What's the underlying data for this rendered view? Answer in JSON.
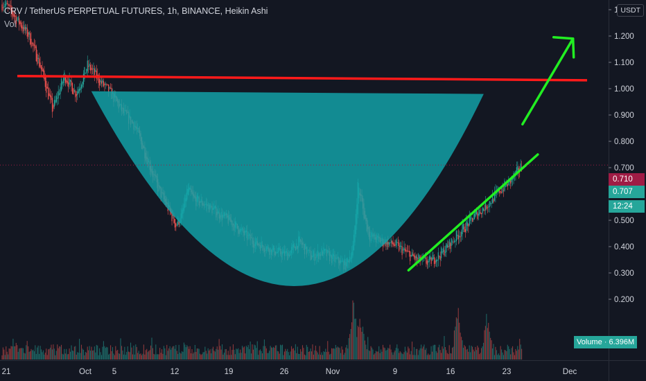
{
  "header": {
    "title": "CRV / TetherUS PERPETUAL FUTURES, 1h, BINANCE, Heikin Ashi",
    "indicator": "Vol",
    "currency_button": "USDT"
  },
  "price_labels": {
    "last_price": "0.710",
    "current_price": "0.707",
    "countdown": "12:24",
    "volume_label": "Volume",
    "volume_separator": "·",
    "volume_value": "6.396M"
  },
  "colors": {
    "background": "#131722",
    "up": "#26a69a",
    "down": "#ef5350",
    "cup_fill": "#12a5ab",
    "resistance": "#ff1a1a",
    "arrow": "#22ee22",
    "last_price_tag": "#a01c45"
  },
  "chart_data": {
    "type": "candlestick",
    "title": "CRV / TetherUS PERPETUAL FUTURES, 1h, BINANCE, Heikin Ashi",
    "y_axis": {
      "ticks": [
        "1.300",
        "1.200",
        "1.100",
        "1.000",
        "0.900",
        "0.800",
        "0.700",
        "0.600",
        "0.500",
        "0.400",
        "0.300",
        "0.200"
      ],
      "range": [
        0.08,
        1.39
      ]
    },
    "x_axis": {
      "ticks": [
        "21",
        "Oct",
        "5",
        "12",
        "19",
        "26",
        "Nov",
        "9",
        "16",
        "23",
        "Dec"
      ]
    },
    "grid": false,
    "price_path": [
      [
        0,
        1.32
      ],
      [
        2,
        1.2
      ],
      [
        3,
        1.08
      ],
      [
        4,
        0.92
      ],
      [
        5,
        1.05
      ],
      [
        6,
        0.98
      ],
      [
        7,
        1.09
      ],
      [
        8,
        1.03
      ],
      [
        9,
        0.98
      ],
      [
        10,
        0.91
      ],
      [
        11,
        0.86
      ],
      [
        12,
        0.74
      ],
      [
        13,
        0.62
      ],
      [
        14,
        0.53
      ],
      [
        14.5,
        0.48
      ],
      [
        15,
        0.52
      ],
      [
        15.5,
        0.62
      ],
      [
        16,
        0.58
      ],
      [
        17,
        0.56
      ],
      [
        18,
        0.53
      ],
      [
        19,
        0.5
      ],
      [
        20,
        0.46
      ],
      [
        21,
        0.42
      ],
      [
        22,
        0.4
      ],
      [
        23,
        0.38
      ],
      [
        24,
        0.37
      ],
      [
        25,
        0.42
      ],
      [
        26,
        0.36
      ],
      [
        27,
        0.38
      ],
      [
        28,
        0.35
      ],
      [
        29,
        0.33
      ],
      [
        29.6,
        0.4
      ],
      [
        30,
        0.64
      ],
      [
        30.6,
        0.5
      ],
      [
        31,
        0.44
      ],
      [
        32,
        0.42
      ],
      [
        33,
        0.41
      ],
      [
        34,
        0.38
      ],
      [
        35,
        0.35
      ],
      [
        36,
        0.34
      ],
      [
        37,
        0.37
      ],
      [
        38,
        0.42
      ],
      [
        39,
        0.47
      ],
      [
        40,
        0.52
      ],
      [
        41,
        0.56
      ],
      [
        42,
        0.61
      ],
      [
        43,
        0.65
      ],
      [
        44,
        0.71
      ]
    ],
    "volume": {
      "baseline_level": "low",
      "spikes": [
        {
          "day": 29.6,
          "relative_height": 1.0
        },
        {
          "day": 30.2,
          "relative_height": 0.85
        },
        {
          "day": 38.5,
          "relative_height": 0.9
        },
        {
          "day": 41.0,
          "relative_height": 0.8
        }
      ]
    },
    "annotations": [
      {
        "kind": "resistance_line",
        "from": {
          "x_day": 1,
          "y": 1.048
        },
        "to": {
          "x_day": 49.5,
          "y": 1.032
        },
        "color": "#ff1a1a"
      },
      {
        "kind": "cup_shape",
        "rim_left": {
          "x_day": 7.3,
          "y": 0.99
        },
        "rim_right": {
          "x_day": 40.7,
          "y": 0.98
        },
        "bottom": {
          "x_day": 25,
          "y": 0.25
        },
        "color": "#12a5ab"
      },
      {
        "kind": "support_arrow_start",
        "from": {
          "x_day": 34.3,
          "y": 0.31
        },
        "to": {
          "x_day": 45.3,
          "y": 0.75
        },
        "color": "#22ee22"
      },
      {
        "kind": "target_arrow",
        "from": {
          "x_day": 45.3,
          "y": 1.04
        },
        "to": {
          "x_day": 48.3,
          "y": 1.19
        },
        "color": "#22ee22"
      }
    ]
  }
}
